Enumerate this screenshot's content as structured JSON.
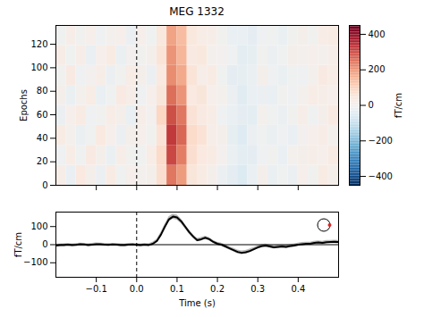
{
  "chart_data": [
    {
      "type": "heatmap",
      "title": "MEG 1332",
      "ylabel": "Epochs",
      "xlim": [
        -0.2,
        0.5
      ],
      "xticks": [
        {
          "value": -0.1,
          "label": "−0.1"
        },
        {
          "value": 0,
          "label": "0.0"
        },
        0.1,
        0.2,
        0.3,
        0.4
      ],
      "ylim": [
        0,
        136
      ],
      "yticks": [
        0,
        20,
        40,
        60,
        80,
        100,
        120
      ],
      "tick_labels": "y",
      "vline": 0,
      "x_edges": [
        -0.2,
        -0.175,
        -0.15,
        -0.125,
        -0.1,
        -0.075,
        -0.05,
        -0.025,
        0,
        0.025,
        0.05,
        0.075,
        0.1,
        0.125,
        0.15,
        0.175,
        0.2,
        0.225,
        0.25,
        0.275,
        0.3,
        0.325,
        0.35,
        0.375,
        0.4,
        0.425,
        0.45,
        0.475,
        0.5
      ],
      "y_edges": [
        0,
        17,
        34,
        51,
        68,
        85,
        102,
        119,
        136
      ],
      "cells": [
        [
          20,
          -30,
          40,
          10,
          -20,
          30,
          -10,
          15,
          5,
          10,
          70,
          240,
          190,
          50,
          30,
          10,
          -20,
          -40,
          -60,
          -30,
          10,
          -25,
          -10,
          -20,
          15,
          -5,
          30,
          10
        ],
        [
          -15,
          25,
          -10,
          35,
          10,
          -25,
          20,
          -5,
          -10,
          25,
          80,
          300,
          230,
          70,
          40,
          30,
          0,
          -25,
          -45,
          -40,
          -15,
          -5,
          -30,
          5,
          10,
          20,
          15,
          30
        ],
        [
          30,
          5,
          -25,
          -10,
          40,
          15,
          -20,
          10,
          15,
          -5,
          60,
          320,
          260,
          80,
          60,
          20,
          10,
          -35,
          -55,
          -20,
          -10,
          -25,
          -15,
          -30,
          0,
          15,
          25,
          5
        ],
        [
          -20,
          15,
          30,
          -15,
          -5,
          25,
          10,
          -30,
          20,
          0,
          90,
          290,
          240,
          60,
          35,
          25,
          -15,
          -30,
          -40,
          -45,
          5,
          -10,
          -20,
          -5,
          20,
          -10,
          10,
          35
        ],
        [
          10,
          -25,
          5,
          25,
          -30,
          -10,
          35,
          20,
          -15,
          15,
          50,
          250,
          200,
          40,
          50,
          15,
          5,
          -20,
          -50,
          -30,
          -20,
          -30,
          -5,
          -15,
          5,
          25,
          20,
          15
        ],
        [
          -5,
          35,
          -15,
          0,
          20,
          -20,
          -5,
          25,
          10,
          -20,
          40,
          210,
          170,
          55,
          20,
          30,
          -10,
          -40,
          -35,
          -25,
          10,
          -15,
          -25,
          -10,
          -15,
          5,
          35,
          25
        ],
        [
          25,
          -10,
          20,
          -30,
          15,
          30,
          -25,
          0,
          -5,
          10,
          55,
          200,
          150,
          35,
          45,
          5,
          0,
          -15,
          -45,
          -35,
          -5,
          -20,
          -10,
          10,
          5,
          15,
          5,
          20
        ],
        [
          -10,
          20,
          -5,
          15,
          -15,
          5,
          15,
          -20,
          15,
          -10,
          45,
          180,
          140,
          45,
          25,
          20,
          -5,
          -30,
          -30,
          -40,
          -15,
          -10,
          -25,
          -5,
          10,
          -5,
          25,
          30
        ]
      ],
      "colorbar": {
        "label": "fT/cm",
        "range": [
          -450,
          450
        ],
        "ticks": [
          {
            "value": -400,
            "label": "−400"
          },
          {
            "value": -200,
            "label": "−200"
          },
          0,
          200,
          400
        ]
      }
    },
    {
      "type": "line",
      "xlabel": "Time (s)",
      "ylabel": "fT/cm",
      "color": "#000000",
      "xlim": [
        -0.2,
        0.5
      ],
      "xticks": [
        {
          "value": -0.1,
          "label": "−0.1"
        },
        {
          "value": 0,
          "label": "0.0"
        },
        0.1,
        0.2,
        0.3,
        0.4
      ],
      "ylim": [
        -180,
        180
      ],
      "yticks": [
        {
          "value": -100,
          "label": "−100"
        },
        0,
        100
      ],
      "vline": 0,
      "hline": 0,
      "x": [
        -0.2,
        -0.19,
        -0.18,
        -0.17,
        -0.16,
        -0.15,
        -0.14,
        -0.13,
        -0.12,
        -0.11,
        -0.1,
        -0.09,
        -0.08,
        -0.07,
        -0.06,
        -0.05,
        -0.04,
        -0.03,
        -0.02,
        -0.01,
        0,
        0.01,
        0.02,
        0.03,
        0.04,
        0.05,
        0.06,
        0.07,
        0.08,
        0.09,
        0.1,
        0.11,
        0.12,
        0.13,
        0.14,
        0.15,
        0.16,
        0.17,
        0.18,
        0.19,
        0.2,
        0.21,
        0.22,
        0.23,
        0.24,
        0.25,
        0.26,
        0.27,
        0.28,
        0.29,
        0.3,
        0.31,
        0.32,
        0.33,
        0.34,
        0.35,
        0.36,
        0.37,
        0.38,
        0.39,
        0.4,
        0.41,
        0.42,
        0.43,
        0.44,
        0.45,
        0.46,
        0.47,
        0.48,
        0.49,
        0.5
      ],
      "values": [
        -5,
        -3,
        -2,
        0,
        -3,
        -1,
        2,
        1,
        -2,
        0,
        3,
        2,
        0,
        -1,
        1,
        0,
        -2,
        -3,
        0,
        1,
        -1,
        -3,
        0,
        -2,
        5,
        20,
        55,
        100,
        140,
        155,
        150,
        130,
        100,
        70,
        45,
        25,
        30,
        38,
        30,
        15,
        5,
        0,
        -10,
        -20,
        -30,
        -40,
        -45,
        -42,
        -35,
        -25,
        -15,
        -8,
        -5,
        -10,
        -15,
        -12,
        -10,
        -12,
        -8,
        -5,
        0,
        3,
        5,
        5,
        10,
        12,
        10,
        14,
        15,
        16,
        14
      ],
      "sem": [
        7,
        7,
        7,
        7,
        7,
        7,
        7,
        7,
        7,
        7,
        7,
        7,
        7,
        7,
        7,
        7,
        7,
        7,
        7,
        7,
        7,
        7,
        7,
        7,
        8,
        9,
        11,
        12,
        14,
        14,
        14,
        13,
        12,
        11,
        10,
        9,
        9,
        9,
        9,
        9,
        9,
        9,
        9,
        9,
        10,
        10,
        10,
        10,
        10,
        9,
        9,
        9,
        9,
        9,
        9,
        9,
        9,
        9,
        9,
        9,
        9,
        9,
        9,
        9,
        9,
        9,
        9,
        9,
        9,
        9,
        9
      ]
    }
  ]
}
